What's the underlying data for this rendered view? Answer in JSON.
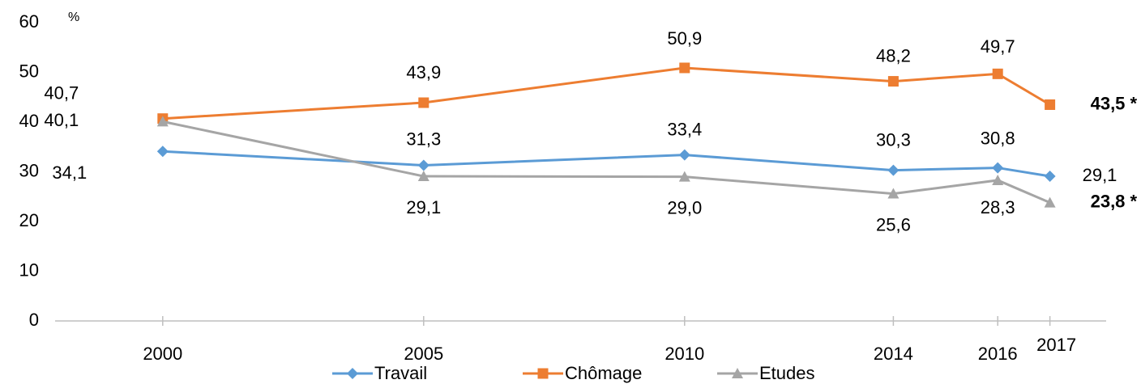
{
  "chart_data": {
    "type": "line",
    "y_unit": "%",
    "x": [
      2000,
      2005,
      2010,
      2014,
      2016,
      2017
    ],
    "xlim": [
      1998,
      2018
    ],
    "xticks": [
      2000,
      2005,
      2010,
      2014,
      2016,
      2017
    ],
    "ylim": [
      0,
      60
    ],
    "yticks": [
      0,
      10,
      20,
      30,
      40,
      50,
      60
    ],
    "grid": false,
    "legend": "bottom",
    "series": [
      {
        "name": "Travail",
        "color": "#5b9bd5",
        "marker": "diamond",
        "values": [
          34.1,
          31.3,
          33.4,
          30.3,
          30.8,
          29.1
        ],
        "value_labels": [
          "34,1",
          "31,3",
          "33,4",
          "30,3",
          "30,8",
          "29,1"
        ]
      },
      {
        "name": "Chômage",
        "color": "#ed7d31",
        "marker": "square",
        "values": [
          40.7,
          43.9,
          50.9,
          48.2,
          49.7,
          43.5
        ],
        "value_labels": [
          "40,7",
          "43,9",
          "50,9",
          "48,2",
          "49,7",
          "43,5 *"
        ]
      },
      {
        "name": "Etudes",
        "color": "#a5a5a5",
        "marker": "triangle",
        "values": [
          40.1,
          29.1,
          29.0,
          25.6,
          28.3,
          23.8
        ],
        "value_labels": [
          "40,1",
          "29,1",
          "29,0",
          "25,6",
          "28,3",
          "23,8 *"
        ]
      }
    ]
  }
}
